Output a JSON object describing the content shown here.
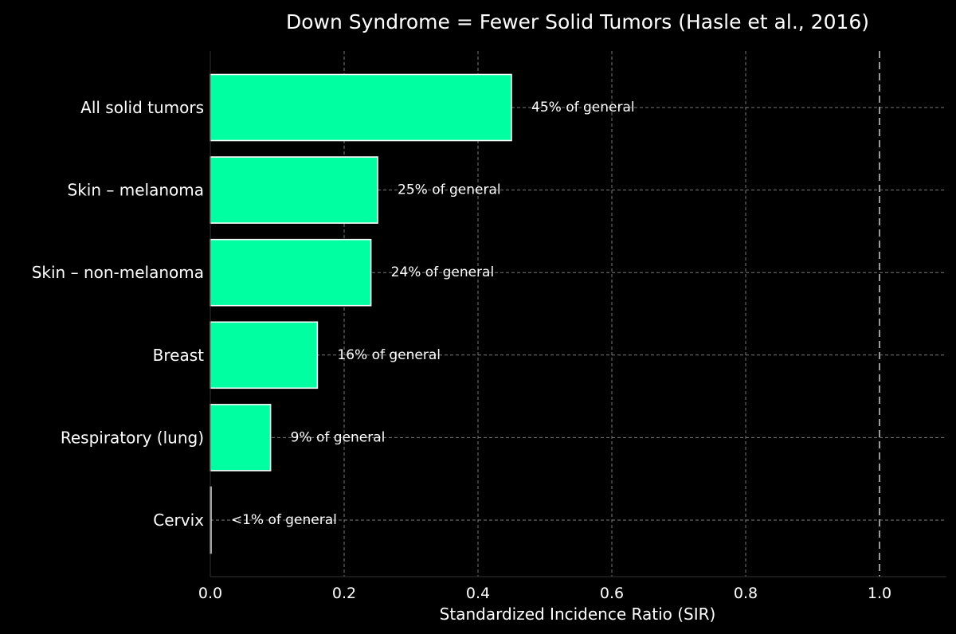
{
  "chart_data": {
    "type": "bar",
    "orientation": "horizontal",
    "title": "Down Syndrome = Fewer Solid Tumors  (Hasle et al., 2016)",
    "xlabel": "Standardized Incidence Ratio (SIR)",
    "ylabel": "",
    "categories": [
      "All solid tumors",
      "Skin – melanoma",
      "Skin – non-melanoma",
      "Breast",
      "Respiratory (lung)",
      "Cervix"
    ],
    "values": [
      0.45,
      0.25,
      0.24,
      0.16,
      0.09,
      0.001
    ],
    "data_labels": [
      "45% of general",
      "25% of general",
      "24% of general",
      "16% of general",
      "9% of general",
      "<1% of general"
    ],
    "xlim": [
      0.0,
      1.1
    ],
    "xticks": [
      "0.0",
      "0.2",
      "0.4",
      "0.6",
      "0.8",
      "1.0"
    ],
    "xtick_values": [
      0.0,
      0.2,
      0.4,
      0.6,
      0.8,
      1.0
    ],
    "reference_line": 1.0,
    "grid": true,
    "colors": {
      "background": "#000000",
      "bar_fill": "#00ffa0",
      "bar_edge": "#ffffff",
      "grid": "#7a7a7a",
      "reference": "#9a9a9a",
      "text": "#ffffff"
    }
  }
}
